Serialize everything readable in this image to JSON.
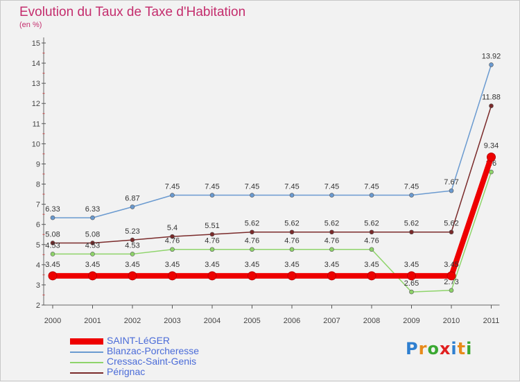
{
  "header": {
    "title": "Evolution du Taux de Taxe d'Habitation",
    "subtitle": "(en %)"
  },
  "logo": {
    "letters": [
      "P",
      "r",
      "o",
      "x",
      "i",
      "t",
      "i"
    ],
    "colors": [
      "#2e7fd0",
      "#e88a1a",
      "#3aa832",
      "#e02020",
      "#2e7fd0",
      "#e88a1a",
      "#3aa832"
    ]
  },
  "chart_data": {
    "type": "line",
    "title": "Evolution du Taux de Taxe d'Habitation",
    "ylabel": "(en %)",
    "xlabel": "",
    "ylim": [
      2,
      15
    ],
    "yticks": [
      2,
      3,
      4,
      5,
      6,
      7,
      8,
      9,
      10,
      11,
      12,
      13,
      14,
      15
    ],
    "categories": [
      "2000",
      "2001",
      "2002",
      "2003",
      "2004",
      "2005",
      "2006",
      "2007",
      "2008",
      "2009",
      "2010",
      "2011"
    ],
    "grid": false,
    "legend_position": "bottom-left",
    "series": [
      {
        "name": "Blanzac-Porcheresse",
        "color": "#6a9ad0",
        "values": [
          6.33,
          6.33,
          6.87,
          7.45,
          7.45,
          7.45,
          7.45,
          7.45,
          7.45,
          7.45,
          7.67,
          13.92
        ],
        "labels": [
          "6.33",
          "6.33",
          "6.87",
          "7.45",
          "7.45",
          "7.45",
          "7.45",
          "7.45",
          "7.45",
          "7.45",
          "7.67",
          "13.92"
        ]
      },
      {
        "name": "Pérignac",
        "color": "#7a2a2a",
        "values": [
          5.08,
          5.08,
          5.23,
          5.4,
          5.51,
          5.62,
          5.62,
          5.62,
          5.62,
          5.62,
          5.62,
          11.88
        ],
        "labels": [
          "5.08",
          "5.08",
          "5.23",
          "5.4",
          "5.51",
          "5.62",
          "5.62",
          "5.62",
          "5.62",
          "5.62",
          "5.62",
          "11.88"
        ]
      },
      {
        "name": "Cressac-Saint-Genis",
        "color": "#8ed46a",
        "values": [
          4.53,
          4.53,
          4.53,
          4.76,
          4.76,
          4.76,
          4.76,
          4.76,
          4.76,
          2.65,
          2.73,
          8.6
        ],
        "labels": [
          "4.53",
          "4.53",
          "4.53",
          "4.76",
          "4.76",
          "4.76",
          "4.76",
          "4.76",
          "4.76",
          "2.65",
          "2.73",
          "8.6"
        ]
      },
      {
        "name": "SAINT-LéGER",
        "color": "#ee0000",
        "values": [
          3.45,
          3.45,
          3.45,
          3.45,
          3.45,
          3.45,
          3.45,
          3.45,
          3.45,
          3.45,
          3.45,
          9.34
        ],
        "labels": [
          "3.45",
          "3.45",
          "3.45",
          "3.45",
          "3.45",
          "3.45",
          "3.45",
          "3.45",
          "3.45",
          "3.45",
          "3.45",
          "9.34"
        ]
      }
    ],
    "legend": [
      {
        "name": "SAINT-LéGER",
        "color": "#ee0000",
        "thick": true
      },
      {
        "name": "Blanzac-Porcheresse",
        "color": "#6a9ad0",
        "thick": false
      },
      {
        "name": "Cressac-Saint-Genis",
        "color": "#8ed46a",
        "thick": false
      },
      {
        "name": "Pérignac",
        "color": "#7a2a2a",
        "thick": false
      }
    ]
  }
}
